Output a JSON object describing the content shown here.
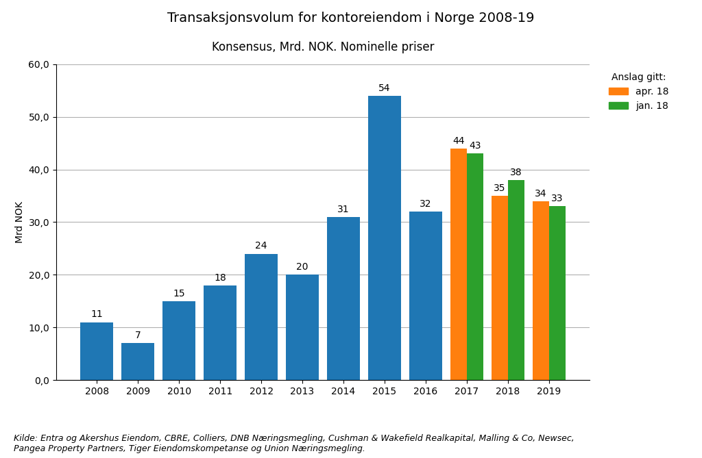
{
  "chart_data": {
    "type": "bar",
    "title": "Transaksjonsvolum for kontoreiendom i Norge 2008-19",
    "subtitle": "Konsensus, Mrd. NOK. Nominelle priser",
    "ylabel": "Mrd NOK",
    "footnote": "Kilde: Entra og Akershus Eiendom, CBRE, Colliers, DNB Næringsmegling, Cushman & Wakefield Realkapital, Malling & Co, Newsec,\nPangea Property Partners, Tiger Eiendomskompetanse og Union Næringsmegling.",
    "categories": [
      "2008",
      "2009",
      "2010",
      "2011",
      "2012",
      "2013",
      "2014",
      "2015",
      "2016",
      "2017",
      "2018",
      "2019"
    ],
    "series": [
      {
        "values": [
          11,
          7,
          15,
          18,
          24,
          20,
          31,
          54,
          32,
          null,
          null,
          null
        ]
      },
      {
        "name": "apr. 18",
        "values": [
          null,
          null,
          null,
          null,
          null,
          null,
          null,
          null,
          null,
          44,
          35,
          34
        ]
      },
      {
        "name": "jan. 18",
        "values": [
          null,
          null,
          null,
          null,
          null,
          null,
          null,
          null,
          null,
          43,
          38,
          33
        ]
      }
    ],
    "legend_title": "Anslag gitt:",
    "legend": "upper left",
    "ylim": [
      0,
      60
    ],
    "yticks": [
      {
        "value": 0,
        "label": "0,0"
      },
      {
        "value": 10,
        "label": "10,0"
      },
      {
        "value": 20,
        "label": "20,0"
      },
      {
        "value": 30,
        "label": "30,0"
      },
      {
        "value": 40,
        "label": "40,0"
      },
      {
        "value": 50,
        "label": "50,0"
      },
      {
        "value": 60,
        "label": "60,0"
      }
    ],
    "grid": true,
    "data_labels": true
  }
}
